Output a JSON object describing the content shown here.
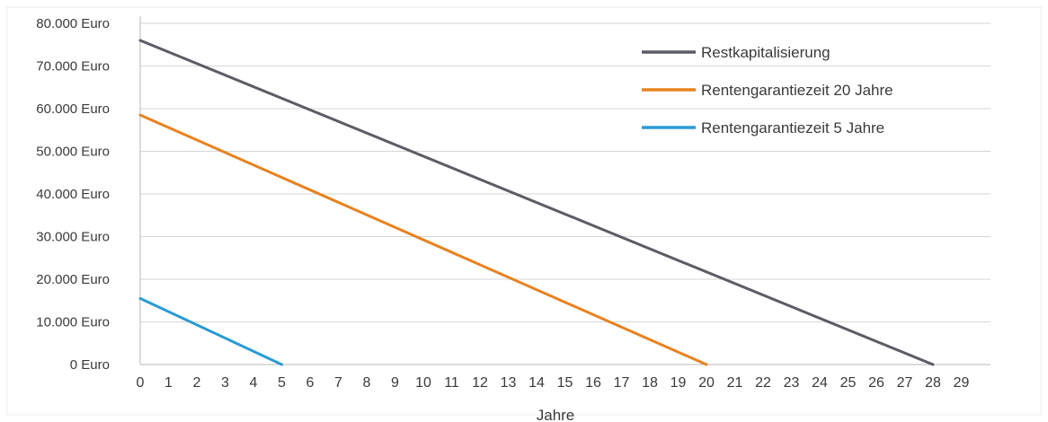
{
  "chart_data": {
    "type": "line",
    "xlabel": "Jahre",
    "ylabel": "",
    "xlim": [
      0,
      29
    ],
    "ylim": [
      0,
      80000
    ],
    "x_ticks": [
      "0",
      "1",
      "2",
      "3",
      "4",
      "5",
      "6",
      "7",
      "8",
      "9",
      "10",
      "11",
      "12",
      "13",
      "14",
      "15",
      "16",
      "17",
      "18",
      "19",
      "20",
      "21",
      "22",
      "23",
      "24",
      "25",
      "26",
      "27",
      "28",
      "29"
    ],
    "y_ticks": [
      {
        "value": 0,
        "label": "0 Euro"
      },
      {
        "value": 10000,
        "label": "10.000 Euro"
      },
      {
        "value": 20000,
        "label": "20.000 Euro"
      },
      {
        "value": 30000,
        "label": "30.000 Euro"
      },
      {
        "value": 40000,
        "label": "40.000 Euro"
      },
      {
        "value": 50000,
        "label": "50.000 Euro"
      },
      {
        "value": 60000,
        "label": "60.000 Euro"
      },
      {
        "value": 70000,
        "label": "70.000 Euro"
      },
      {
        "value": 80000,
        "label": "80.000 Euro"
      }
    ],
    "grid": "horizontal",
    "legend_position": "top-right",
    "series": [
      {
        "name": "Restkapitalisierung",
        "color": "#5a5d63",
        "points": [
          [
            0,
            76000
          ],
          [
            28,
            0
          ]
        ]
      },
      {
        "name": "Rentengarantiezeit 20 Jahre",
        "color": "#e8821f",
        "points": [
          [
            0,
            58500
          ],
          [
            20,
            0
          ]
        ]
      },
      {
        "name": "Rentengarantiezeit 5 Jahre",
        "color": "#2a9ad6",
        "points": [
          [
            0,
            15500
          ],
          [
            5,
            0
          ]
        ]
      }
    ]
  }
}
